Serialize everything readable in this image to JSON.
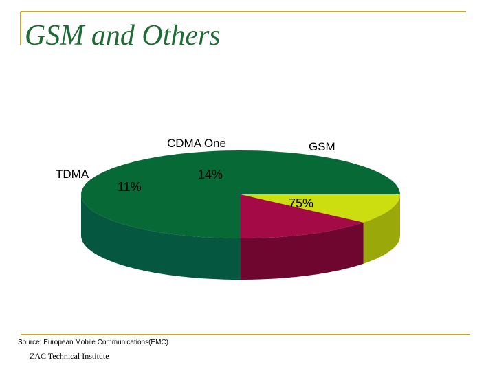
{
  "slide": {
    "title": "GSM  and Others",
    "source": "Source: European Mobile Communications(EMC)",
    "footer": "ZAC Technical Institute"
  },
  "colors": {
    "accent": "#c8a82c",
    "title": "#1f6b35"
  },
  "chart_data": {
    "type": "pie",
    "style": "3d",
    "categories": [
      "GSM",
      "CDMA One",
      "TDMA"
    ],
    "values": [
      75,
      14,
      11
    ],
    "value_labels": [
      "75%",
      "14%",
      "11%"
    ],
    "colors": [
      "#076a36",
      "#a30a46",
      "#ccdd10"
    ],
    "side_colors": [
      "#05573f",
      "#6e0630",
      "#9aa80a"
    ]
  }
}
